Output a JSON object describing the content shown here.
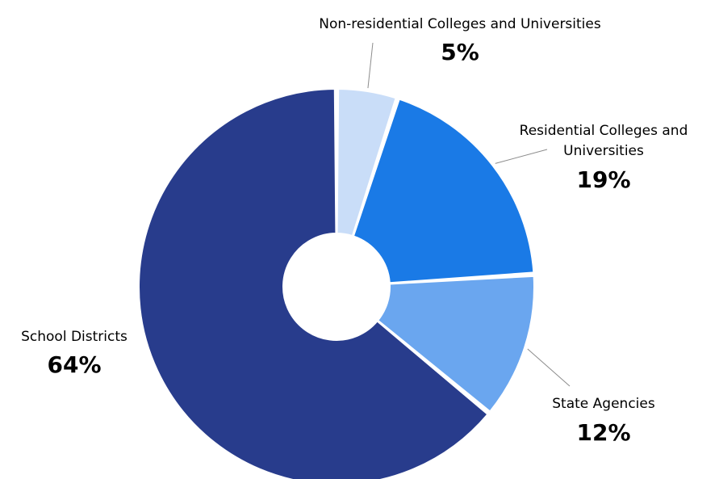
{
  "chart_data": {
    "type": "pie",
    "style": "donut",
    "legend": "none",
    "slices": [
      {
        "label": "Non-residential Colleges and Universities",
        "label_lines": [
          "Non-residential Colleges and Universities"
        ],
        "value": 5,
        "value_label": "5%",
        "color": "#c9ddf8"
      },
      {
        "label": "Residential Colleges and Universities",
        "label_lines": [
          "Residential Colleges and",
          "Universities"
        ],
        "value": 19,
        "value_label": "19%",
        "color": "#1a7ae6"
      },
      {
        "label": "State Agencies",
        "label_lines": [
          "State Agencies"
        ],
        "value": 12,
        "value_label": "12%",
        "color": "#6aa6ef"
      },
      {
        "label": "School Districts",
        "label_lines": [
          "School Districts"
        ],
        "value": 64,
        "value_label": "64%",
        "color": "#283c8c"
      }
    ]
  }
}
